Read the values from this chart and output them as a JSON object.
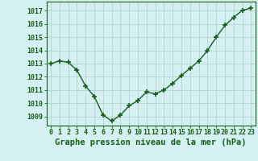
{
  "x": [
    0,
    1,
    2,
    3,
    4,
    5,
    6,
    7,
    8,
    9,
    10,
    11,
    12,
    13,
    14,
    15,
    16,
    17,
    18,
    19,
    20,
    21,
    22,
    23
  ],
  "y": [
    1013.0,
    1013.2,
    1013.1,
    1012.5,
    1011.3,
    1010.5,
    1009.1,
    1008.65,
    1009.1,
    1009.8,
    1010.2,
    1010.85,
    1010.7,
    1011.0,
    1011.5,
    1012.1,
    1012.65,
    1013.2,
    1014.0,
    1015.0,
    1015.9,
    1016.5,
    1017.05,
    1017.2
  ],
  "line_color": "#1a5c1a",
  "marker": "+",
  "markersize": 5,
  "markeredgewidth": 1.2,
  "bg_color": "#d4f0f0",
  "grid_color": "#b8d8d8",
  "axis_color": "#1a5c1a",
  "xlabel": "Graphe pression niveau de la mer (hPa)",
  "xlabel_fontsize": 7.5,
  "ylabel_ticks": [
    1009,
    1010,
    1011,
    1012,
    1013,
    1014,
    1015,
    1016,
    1017
  ],
  "ylim": [
    1008.3,
    1017.7
  ],
  "xlim": [
    -0.5,
    23.5
  ],
  "tick_fontsize": 6.0,
  "linewidth": 1.0
}
